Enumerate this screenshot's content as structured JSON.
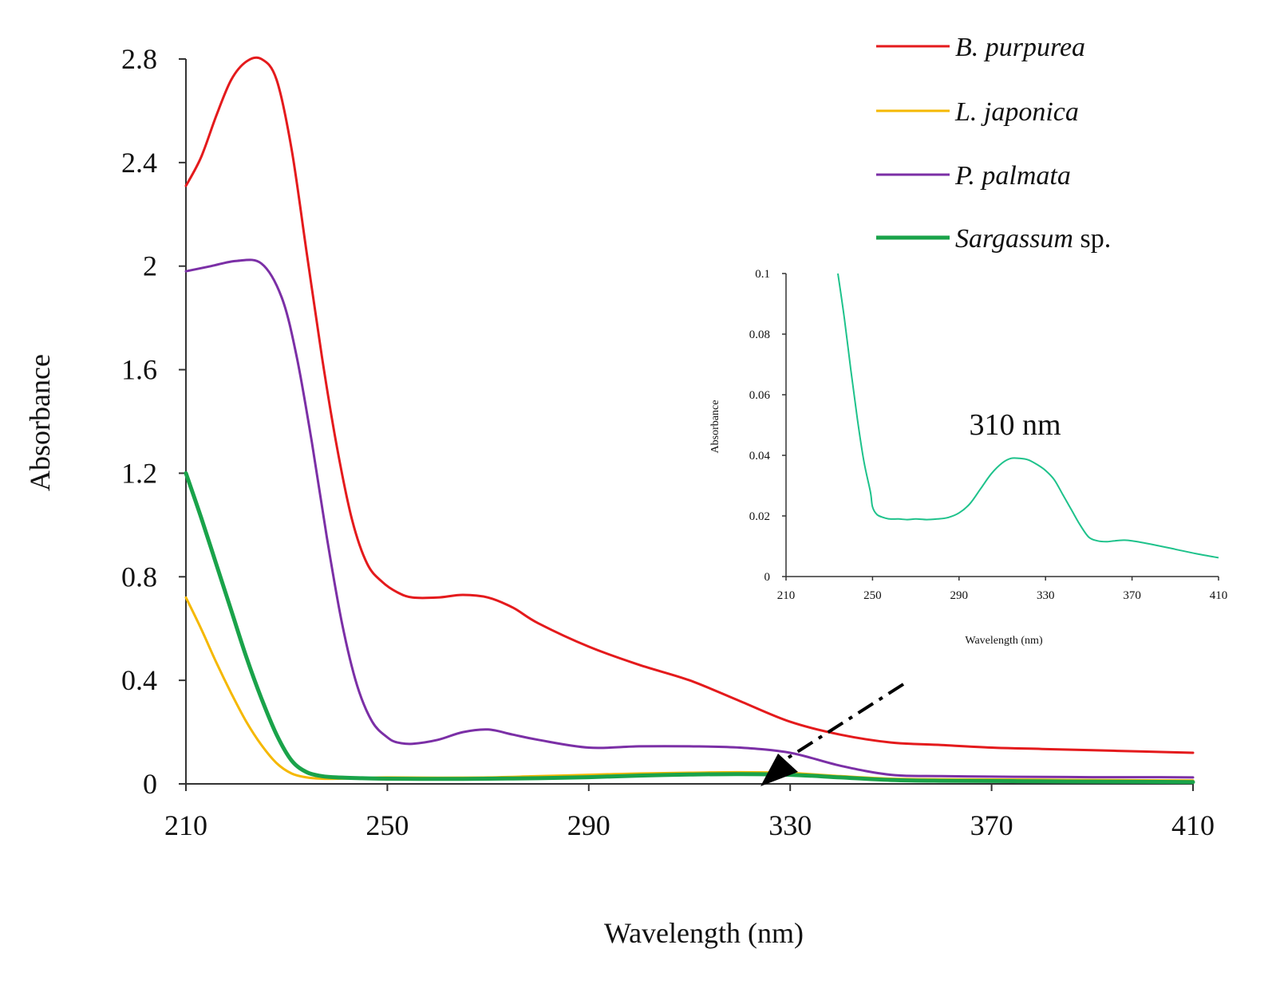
{
  "chart_data": [
    {
      "type": "line",
      "xlabel": "Wavelength (nm)",
      "ylabel": "Absorbance",
      "xlim": [
        210,
        410
      ],
      "ylim": [
        0,
        2.8
      ],
      "x_ticks": [
        "210",
        "250",
        "290",
        "330",
        "370",
        "410"
      ],
      "y_ticks": [
        "0",
        "0.4",
        "0.8",
        "1.2",
        "1.6",
        "2",
        "2.4",
        "2.8"
      ],
      "grid": false,
      "legend_position": "top-right",
      "series": [
        {
          "name": "B. purpurea",
          "name_main": "B. purpurea",
          "name_suffix": "",
          "color": "#e41a1c",
          "x": [
            210,
            213,
            216,
            219,
            222,
            225,
            228,
            231,
            234,
            237,
            240,
            243,
            246,
            249,
            252,
            255,
            260,
            265,
            270,
            275,
            280,
            290,
            300,
            310,
            320,
            330,
            340,
            350,
            360,
            370,
            380,
            390,
            400,
            410
          ],
          "y": [
            2.31,
            2.42,
            2.58,
            2.72,
            2.79,
            2.8,
            2.72,
            2.45,
            2.05,
            1.65,
            1.3,
            1.02,
            0.85,
            0.78,
            0.74,
            0.72,
            0.72,
            0.73,
            0.72,
            0.68,
            0.62,
            0.53,
            0.46,
            0.4,
            0.32,
            0.24,
            0.19,
            0.16,
            0.15,
            0.14,
            0.135,
            0.13,
            0.125,
            0.12
          ]
        },
        {
          "name": "L. japonica",
          "name_main": "L. japonica",
          "name_suffix": "",
          "color": "#f5b800",
          "x": [
            210,
            213,
            216,
            219,
            222,
            225,
            228,
            231,
            234,
            237,
            240,
            245,
            250,
            260,
            270,
            280,
            290,
            300,
            310,
            320,
            330,
            340,
            350,
            360,
            370,
            380,
            390,
            400,
            410
          ],
          "y": [
            0.72,
            0.6,
            0.47,
            0.35,
            0.24,
            0.15,
            0.08,
            0.04,
            0.025,
            0.02,
            0.02,
            0.022,
            0.025,
            0.024,
            0.025,
            0.03,
            0.035,
            0.04,
            0.043,
            0.045,
            0.042,
            0.03,
            0.02,
            0.018,
            0.017,
            0.016,
            0.015,
            0.014,
            0.013
          ]
        },
        {
          "name": "P. palmata",
          "name_main": "P. palmata",
          "name_suffix": "",
          "color": "#7b2fa6",
          "x": [
            210,
            215,
            220,
            225,
            229,
            232,
            235,
            238,
            241,
            244,
            247,
            250,
            252,
            255,
            260,
            265,
            270,
            275,
            280,
            290,
            300,
            310,
            320,
            330,
            340,
            350,
            360,
            370,
            380,
            390,
            400,
            410
          ],
          "y": [
            1.98,
            2.0,
            2.02,
            2.01,
            1.88,
            1.65,
            1.32,
            0.95,
            0.62,
            0.38,
            0.24,
            0.18,
            0.16,
            0.155,
            0.17,
            0.2,
            0.21,
            0.19,
            0.17,
            0.14,
            0.145,
            0.145,
            0.14,
            0.12,
            0.07,
            0.035,
            0.03,
            0.028,
            0.027,
            0.026,
            0.026,
            0.025
          ]
        },
        {
          "name": "Sargassum sp.",
          "name_main": "Sargassum",
          "name_suffix": " sp.",
          "color": "#1aa34a",
          "x": [
            210,
            213,
            216,
            219,
            222,
            225,
            228,
            231,
            234,
            237,
            240,
            245,
            250,
            260,
            270,
            280,
            290,
            300,
            310,
            320,
            330,
            340,
            350,
            360,
            370,
            380,
            390,
            400,
            410
          ],
          "y": [
            1.2,
            1.03,
            0.85,
            0.67,
            0.49,
            0.33,
            0.19,
            0.09,
            0.045,
            0.03,
            0.025,
            0.022,
            0.02,
            0.019,
            0.02,
            0.022,
            0.026,
            0.032,
            0.036,
            0.038,
            0.035,
            0.025,
            0.015,
            0.012,
            0.011,
            0.01,
            0.009,
            0.008,
            0.007
          ]
        }
      ]
    },
    {
      "type": "line",
      "xlabel": "Wavelength (nm)",
      "ylabel": "Absorbance",
      "xlim": [
        210,
        410
      ],
      "ylim": [
        0,
        0.1
      ],
      "x_ticks": [
        "210",
        "250",
        "290",
        "330",
        "370",
        "410"
      ],
      "y_ticks": [
        "0",
        "0.02",
        "0.04",
        "0.06",
        "0.08",
        "0.1"
      ],
      "grid": false,
      "annotation": "310 nm",
      "series": [
        {
          "color": "#1ec28b",
          "x": [
            234,
            237,
            240,
            243,
            246,
            249,
            250,
            252,
            255,
            258,
            262,
            266,
            270,
            275,
            280,
            285,
            290,
            295,
            300,
            305,
            310,
            314,
            318,
            322,
            326,
            330,
            334,
            338,
            342,
            346,
            350,
            354,
            358,
            362,
            366,
            370,
            380,
            390,
            400,
            410
          ],
          "y": [
            0.1,
            0.085,
            0.068,
            0.052,
            0.038,
            0.028,
            0.023,
            0.0205,
            0.0195,
            0.019,
            0.019,
            0.0188,
            0.019,
            0.0188,
            0.019,
            0.0195,
            0.021,
            0.024,
            0.029,
            0.034,
            0.0375,
            0.039,
            0.039,
            0.0385,
            0.037,
            0.035,
            0.032,
            0.027,
            0.022,
            0.017,
            0.013,
            0.0118,
            0.0115,
            0.0118,
            0.012,
            0.0118,
            0.0105,
            0.009,
            0.0075,
            0.0062
          ]
        }
      ]
    }
  ]
}
